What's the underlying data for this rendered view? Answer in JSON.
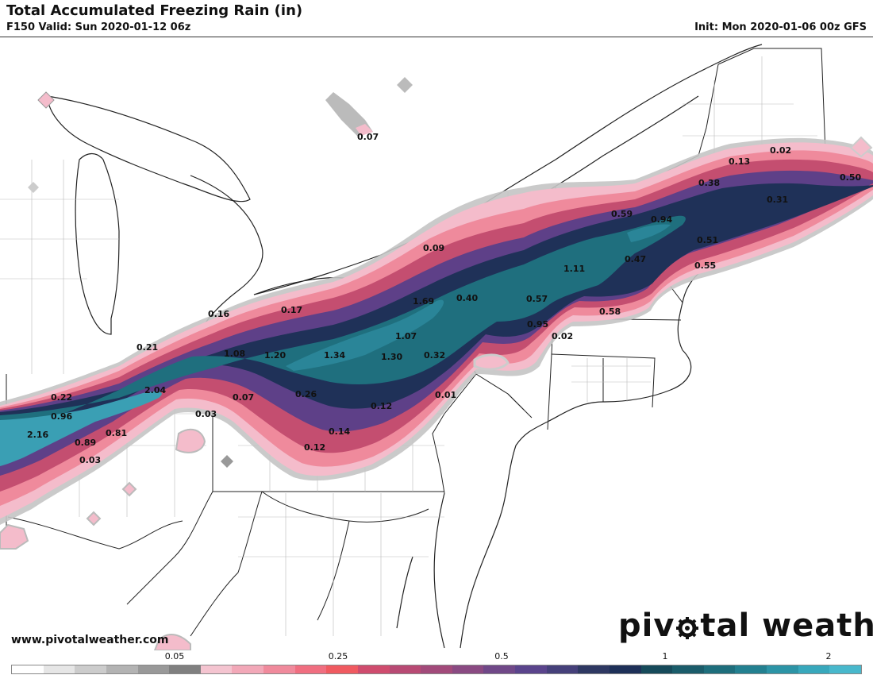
{
  "header": {
    "title": "Total Accumulated Freezing Rain (in)",
    "valid": "F150 Valid: Sun 2020-01-12 06z",
    "init": "Init: Mon 2020-01-06 00z GFS"
  },
  "footer": {
    "website": "www.pivotalweather.com",
    "brand_prefix": "piv",
    "brand_suffix": "tal weather"
  },
  "legend": {
    "ticks": [
      "0.05",
      "0.25",
      "0.5",
      "1",
      "2"
    ],
    "colors": [
      "#ffffff",
      "#e6e6e6",
      "#cccccc",
      "#b3b3b3",
      "#999999",
      "#808080",
      "#f4c4d0",
      "#f2a8b8",
      "#f08a9c",
      "#f06e80",
      "#f05a60",
      "#cf4c6e",
      "#b84a74",
      "#a24a7a",
      "#8a4a82",
      "#704888",
      "#5a448c",
      "#45407a",
      "#2e3862",
      "#1e3058",
      "#164a5a",
      "#1a5c6a",
      "#1e6e7c",
      "#238090",
      "#2c94a6",
      "#38a8bc",
      "#48b8cc"
    ]
  },
  "colors": {
    "light_pink": "#f4bccb",
    "pink": "#ef8a9c",
    "magenta": "#c44e70",
    "purple": "#5e4088",
    "navy": "#1f3158",
    "teal": "#1f6f7e",
    "cyan": "#3a9fb4",
    "gray": "#a5a5a5"
  },
  "map_values": [
    "0.07",
    "0.02",
    "0.13",
    "0.50",
    "0.38",
    "0.31",
    "0.59",
    "0.94",
    "0.51",
    "0.55",
    "0.47",
    "0.09",
    "1.11",
    "0.58",
    "0.40",
    "0.57",
    "0.16",
    "0.17",
    "1.69",
    "0.95",
    "0.02",
    "0.21",
    "1.07",
    "1.08",
    "1.20",
    "1.34",
    "1.30",
    "0.32",
    "0.22",
    "2.04",
    "0.07",
    "0.26",
    "0.01",
    "0.96",
    "0.12",
    "0.03",
    "2.16",
    "0.89",
    "0.81",
    "0.14",
    "0.03",
    "0.12"
  ]
}
